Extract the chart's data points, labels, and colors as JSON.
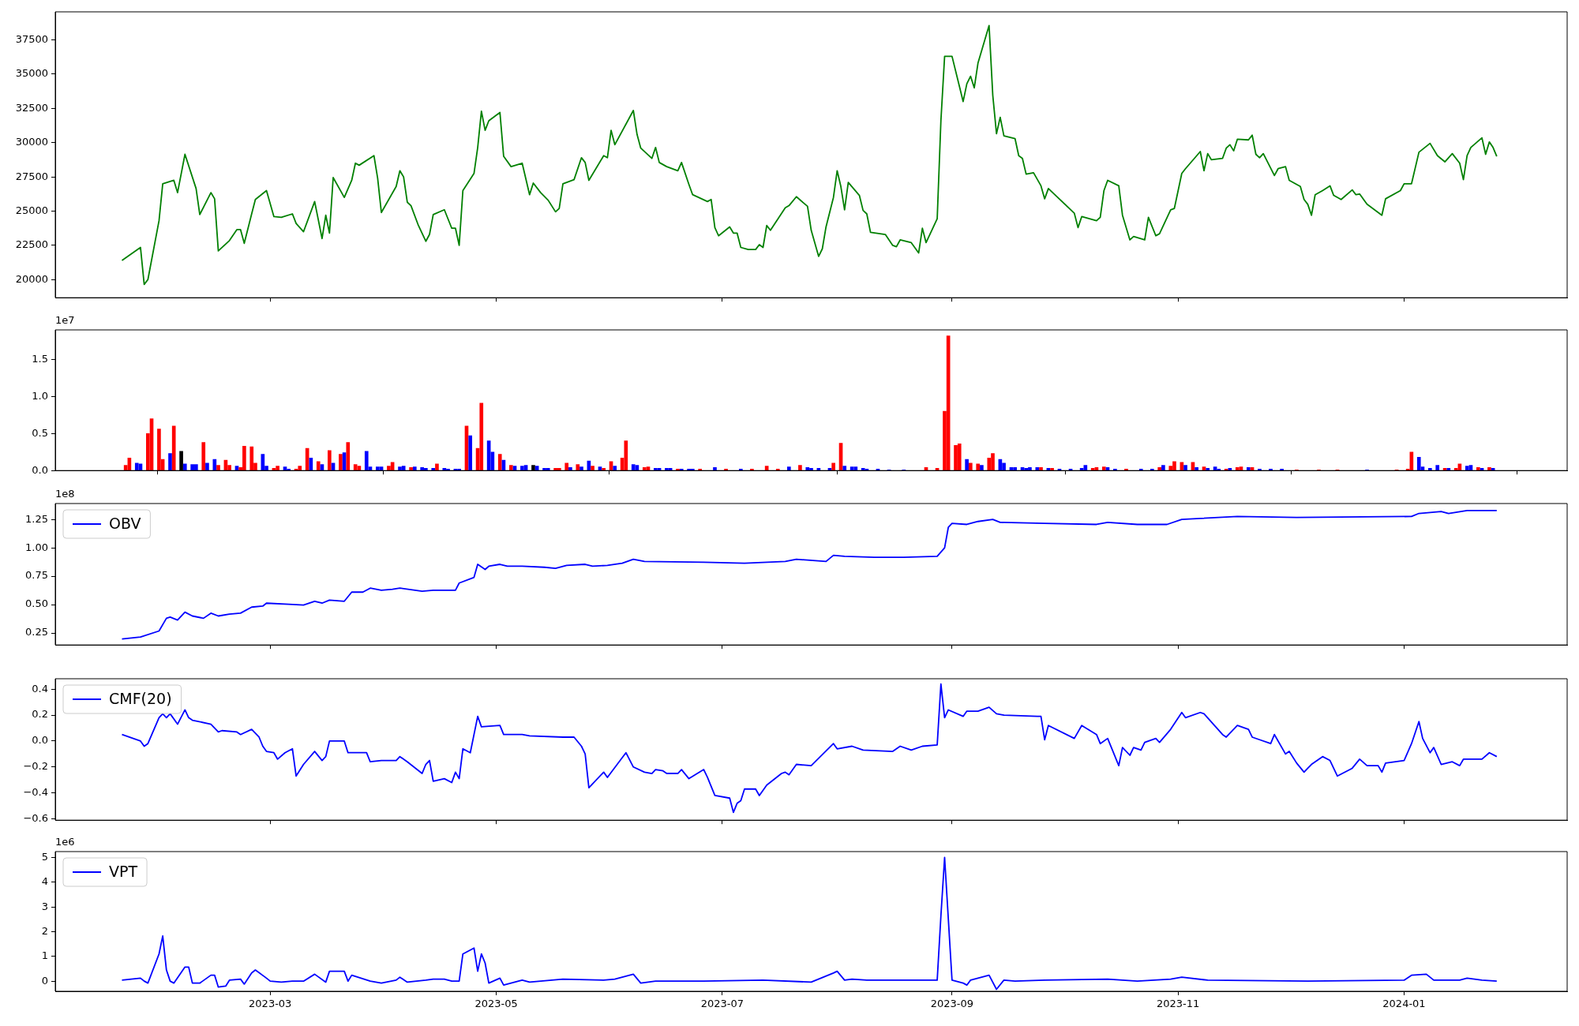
{
  "chart_data": [
    {
      "type": "line",
      "xlim": [
        "2023-01-02",
        "2024-02-14"
      ],
      "xticks": [
        "2023-03",
        "2023-05",
        "2023-07",
        "2023-09",
        "2023-11",
        "2024-01"
      ],
      "tick_labels": "y",
      "ylim": [
        18680,
        39550
      ],
      "yticks": [
        20000,
        22500,
        25000,
        27500,
        30000,
        32500,
        35000,
        37500
      ],
      "x": [
        "2023-01-20",
        "2023-01-25",
        "2023-01-26",
        "2023-01-27",
        "2023-01-30",
        "2023-01-31",
        "2023-02-03",
        "2023-02-04",
        "2023-02-06",
        "2023-02-09",
        "2023-02-10",
        "2023-02-13",
        "2023-02-14",
        "2023-02-15",
        "2023-02-18",
        "2023-02-20",
        "2023-02-21",
        "2023-02-22",
        "2023-02-24",
        "2023-02-25",
        "2023-02-28",
        "2023-03-02",
        "2023-03-04",
        "2023-03-07",
        "2023-03-08",
        "2023-03-10",
        "2023-03-13",
        "2023-03-15",
        "2023-03-16",
        "2023-03-17",
        "2023-03-18",
        "2023-03-21",
        "2023-03-23",
        "2023-03-24",
        "2023-03-25",
        "2023-03-29",
        "2023-03-30",
        "2023-03-31",
        "2023-04-04",
        "2023-04-05",
        "2023-04-06",
        "2023-04-07",
        "2023-04-08",
        "2023-04-10",
        "2023-04-12",
        "2023-04-13",
        "2023-04-14",
        "2023-04-17",
        "2023-04-19",
        "2023-04-20",
        "2023-04-21",
        "2023-04-22",
        "2023-04-25",
        "2023-04-26",
        "2023-04-27",
        "2023-04-28",
        "2023-04-29",
        "2023-05-02",
        "2023-05-03",
        "2023-05-05",
        "2023-05-08",
        "2023-05-10",
        "2023-05-11",
        "2023-05-13",
        "2023-05-15",
        "2023-05-17",
        "2023-05-18",
        "2023-05-19",
        "2023-05-22",
        "2023-05-24",
        "2023-05-25",
        "2023-05-26",
        "2023-05-30",
        "2023-05-31",
        "2023-06-01",
        "2023-06-02",
        "2023-06-07",
        "2023-06-08",
        "2023-06-09",
        "2023-06-12",
        "2023-06-13",
        "2023-06-14",
        "2023-06-16",
        "2023-06-19",
        "2023-06-20",
        "2023-06-22",
        "2023-06-23",
        "2023-06-27",
        "2023-06-28",
        "2023-06-29",
        "2023-06-30",
        "2023-07-03",
        "2023-07-04",
        "2023-07-05",
        "2023-07-06",
        "2023-07-08",
        "2023-07-10",
        "2023-07-11",
        "2023-07-12",
        "2023-07-13",
        "2023-07-14",
        "2023-07-18",
        "2023-07-19",
        "2023-07-21",
        "2023-07-24",
        "2023-07-25",
        "2023-07-27",
        "2023-07-28",
        "2023-07-29",
        "2023-07-31",
        "2023-08-01",
        "2023-08-02",
        "2023-08-03",
        "2023-08-04",
        "2023-08-07",
        "2023-08-08",
        "2023-08-09",
        "2023-08-10",
        "2023-08-14",
        "2023-08-16",
        "2023-08-17",
        "2023-08-18",
        "2023-08-21",
        "2023-08-23",
        "2023-08-24",
        "2023-08-25",
        "2023-08-28",
        "2023-08-29",
        "2023-08-30",
        "2023-09-01",
        "2023-09-03",
        "2023-09-04",
        "2023-09-05",
        "2023-09-06",
        "2023-09-07",
        "2023-09-08",
        "2023-09-11",
        "2023-09-12",
        "2023-09-13",
        "2023-09-14",
        "2023-09-15",
        "2023-09-18",
        "2023-09-19",
        "2023-09-20",
        "2023-09-21",
        "2023-09-23",
        "2023-09-25",
        "2023-09-26",
        "2023-09-27",
        "2023-10-04",
        "2023-10-05",
        "2023-10-06",
        "2023-10-10",
        "2023-10-11",
        "2023-10-12",
        "2023-10-13",
        "2023-10-16",
        "2023-10-17",
        "2023-10-19",
        "2023-10-20",
        "2023-10-23",
        "2023-10-24",
        "2023-10-26",
        "2023-10-27",
        "2023-10-30",
        "2023-10-31",
        "2023-11-02",
        "2023-11-03",
        "2023-11-07",
        "2023-11-08",
        "2023-11-09",
        "2023-11-10",
        "2023-11-13",
        "2023-11-14",
        "2023-11-15",
        "2023-11-16",
        "2023-11-17",
        "2023-11-20",
        "2023-11-21",
        "2023-11-22",
        "2023-11-23",
        "2023-11-24",
        "2023-11-27",
        "2023-11-28",
        "2023-11-30",
        "2023-12-01",
        "2023-12-04",
        "2023-12-05",
        "2023-12-06",
        "2023-12-07",
        "2023-12-08",
        "2023-12-10",
        "2023-12-12",
        "2023-12-13",
        "2023-12-15",
        "2023-12-18",
        "2023-12-19",
        "2023-12-20",
        "2023-12-22",
        "2023-12-25",
        "2023-12-26",
        "2023-12-27",
        "2023-12-31",
        "2024-01-01",
        "2024-01-03",
        "2024-01-05",
        "2024-01-08",
        "2024-01-10",
        "2024-01-12",
        "2024-01-14",
        "2024-01-16",
        "2024-01-17",
        "2024-01-18",
        "2024-01-19",
        "2024-01-22",
        "2024-01-23",
        "2024-01-24",
        "2024-01-25",
        "2024-01-26"
      ],
      "series": [
        {
          "color": "#008000",
          "values": [
            21400,
            22350,
            19650,
            20000,
            24300,
            27000,
            27250,
            26350,
            29150,
            26650,
            24750,
            26350,
            25900,
            22100,
            22850,
            23650,
            23650,
            22650,
            24800,
            25850,
            26500,
            24600,
            24550,
            24800,
            24100,
            23500,
            25700,
            23000,
            24700,
            23400,
            27450,
            26000,
            27250,
            28500,
            28350,
            29050,
            27400,
            24900,
            26800,
            27950,
            27500,
            25650,
            25400,
            23950,
            22800,
            23300,
            24750,
            25100,
            23750,
            23750,
            22500,
            26500,
            27750,
            29650,
            32300,
            30900,
            31600,
            32200,
            29000,
            28250,
            28500,
            26200,
            27050,
            26350,
            25800,
            24950,
            25200,
            27000,
            27300,
            28900,
            28550,
            27250,
            29050,
            28900,
            30900,
            29850,
            32350,
            30600,
            29600,
            28850,
            29650,
            28550,
            28250,
            27950,
            28550,
            26950,
            26200,
            25700,
            25850,
            23800,
            23200,
            23850,
            23400,
            23400,
            22350,
            22200,
            22200,
            22550,
            22350,
            23950,
            23600,
            25250,
            25400,
            26050,
            25350,
            23600,
            21700,
            22250,
            23850,
            26000,
            27950,
            26800,
            25100,
            27100,
            26150,
            25050,
            24800,
            23450,
            23300,
            22500,
            22400,
            22900,
            22700,
            21950,
            23750,
            22700,
            24450,
            31600,
            36300,
            36300,
            34100,
            33000,
            34300,
            34850,
            34000,
            35800,
            38550,
            33450,
            30650,
            31850,
            30500,
            30300,
            29050,
            28850,
            27700,
            27800,
            26850,
            25900,
            26650,
            24850,
            23800,
            24600,
            24300,
            24550,
            26500,
            27250,
            26850,
            24700,
            22900,
            23150,
            22900,
            24550,
            23200,
            23350,
            25100,
            25200,
            27750,
            28100,
            29350,
            27950,
            29200,
            28750,
            28850,
            29600,
            29850,
            29400,
            30250,
            30200,
            30550,
            29150,
            28900,
            29200,
            27600,
            28100,
            28250,
            27250,
            26800,
            25850,
            25500,
            24700,
            26200,
            26500,
            26850,
            26150,
            25850,
            26550,
            26200,
            26250,
            25500,
            24900,
            24700,
            25900,
            26500,
            27000,
            27000,
            29300,
            29950,
            29050,
            28600,
            29200,
            28500,
            27300,
            29050,
            29650,
            30350,
            29150,
            30050,
            29650,
            29000
          ]
        }
      ]
    },
    {
      "type": "bar",
      "xlim": [
        "2023-01-02",
        "2024-02-14"
      ],
      "xticks": [
        "2023-03",
        "2023-05",
        "2023-07",
        "2023-09",
        "2023-11",
        "2024-01"
      ],
      "tick_labels": "y",
      "ylim": [
        0,
        1.9
      ],
      "yticks": [
        {
          "value": 0,
          "label": "0.0"
        },
        0.5,
        {
          "value": 1,
          "label": "1.0"
        },
        1.5
      ],
      "annotations": [
        "1e7"
      ],
      "x": [
        "2023-01-21",
        "2023-01-22",
        "2023-01-24",
        "2023-01-25",
        "2023-01-27",
        "2023-01-28",
        "2023-01-30",
        "2023-01-31",
        "2023-02-02",
        "2023-02-03",
        "2023-02-05",
        "2023-02-06",
        "2023-02-08",
        "2023-02-09",
        "2023-02-11",
        "2023-02-12",
        "2023-02-14",
        "2023-02-15",
        "2023-02-17",
        "2023-02-18",
        "2023-02-20",
        "2023-02-21",
        "2023-02-22",
        "2023-02-24",
        "2023-02-25",
        "2023-02-27",
        "2023-02-28",
        "2023-03-02",
        "2023-03-03",
        "2023-03-05",
        "2023-03-06",
        "2023-03-08",
        "2023-03-09",
        "2023-03-11",
        "2023-03-12",
        "2023-03-14",
        "2023-03-15",
        "2023-03-17",
        "2023-03-18",
        "2023-03-20",
        "2023-03-21",
        "2023-03-22",
        "2023-03-24",
        "2023-03-25",
        "2023-03-27",
        "2023-03-28",
        "2023-03-30",
        "2023-03-31",
        "2023-04-02",
        "2023-04-03",
        "2023-04-05",
        "2023-04-06",
        "2023-04-08",
        "2023-04-09",
        "2023-04-11",
        "2023-04-12",
        "2023-04-14",
        "2023-04-15",
        "2023-04-17",
        "2023-04-18",
        "2023-04-20",
        "2023-04-21",
        "2023-04-23",
        "2023-04-24",
        "2023-04-26",
        "2023-04-27",
        "2023-04-29",
        "2023-04-30",
        "2023-05-02",
        "2023-05-03",
        "2023-05-05",
        "2023-05-06",
        "2023-05-08",
        "2023-05-09",
        "2023-05-11",
        "2023-05-12",
        "2023-05-14",
        "2023-05-15",
        "2023-05-17",
        "2023-05-18",
        "2023-05-20",
        "2023-05-21",
        "2023-05-23",
        "2023-05-24",
        "2023-05-26",
        "2023-05-27",
        "2023-05-29",
        "2023-05-30",
        "2023-06-01",
        "2023-06-02",
        "2023-06-04",
        "2023-06-05",
        "2023-06-07",
        "2023-06-08",
        "2023-06-10",
        "2023-06-11",
        "2023-06-13",
        "2023-06-14",
        "2023-06-16",
        "2023-06-17",
        "2023-06-19",
        "2023-06-20",
        "2023-06-22",
        "2023-06-23",
        "2023-06-25",
        "2023-06-29",
        "2023-07-02",
        "2023-07-06",
        "2023-07-09",
        "2023-07-13",
        "2023-07-16",
        "2023-07-19",
        "2023-07-22",
        "2023-07-24",
        "2023-07-25",
        "2023-07-27",
        "2023-07-30",
        "2023-07-31",
        "2023-08-02",
        "2023-08-03",
        "2023-08-05",
        "2023-08-06",
        "2023-08-08",
        "2023-08-09",
        "2023-08-12",
        "2023-08-15",
        "2023-08-19",
        "2023-08-25",
        "2023-08-28",
        "2023-08-30",
        "2023-08-31",
        "2023-09-02",
        "2023-09-03",
        "2023-09-05",
        "2023-09-06",
        "2023-09-08",
        "2023-09-09",
        "2023-09-11",
        "2023-09-12",
        "2023-09-14",
        "2023-09-15",
        "2023-09-17",
        "2023-09-18",
        "2023-09-20",
        "2023-09-21",
        "2023-09-22",
        "2023-09-24",
        "2023-09-25",
        "2023-09-27",
        "2023-09-28",
        "2023-09-30",
        "2023-10-03",
        "2023-10-06",
        "2023-10-07",
        "2023-10-09",
        "2023-10-10",
        "2023-10-12",
        "2023-10-13",
        "2023-10-15",
        "2023-10-18",
        "2023-10-22",
        "2023-10-25",
        "2023-10-27",
        "2023-10-28",
        "2023-10-30",
        "2023-10-31",
        "2023-11-02",
        "2023-11-03",
        "2023-11-05",
        "2023-11-06",
        "2023-11-08",
        "2023-11-09",
        "2023-11-11",
        "2023-11-12",
        "2023-11-14",
        "2023-11-15",
        "2023-11-17",
        "2023-11-18",
        "2023-11-20",
        "2023-11-21",
        "2023-11-23",
        "2023-11-26",
        "2023-11-29",
        "2023-12-03",
        "2023-12-09",
        "2023-12-14",
        "2023-12-22",
        "2023-12-30",
        "2024-01-02",
        "2024-01-03",
        "2024-01-05",
        "2024-01-06",
        "2024-01-08",
        "2024-01-10",
        "2024-01-12",
        "2024-01-13",
        "2024-01-15",
        "2024-01-16",
        "2024-01-18",
        "2024-01-19",
        "2024-01-21",
        "2024-01-22",
        "2024-01-24",
        "2024-01-25"
      ],
      "values": [
        0.07,
        0.17,
        0.1,
        0.09,
        0.5,
        0.7,
        0.56,
        0.15,
        0.23,
        0.6,
        0.26,
        0.09,
        0.08,
        0.08,
        0.38,
        0.1,
        0.15,
        0.07,
        0.14,
        0.07,
        0.06,
        0.04,
        0.33,
        0.32,
        0.1,
        0.22,
        0.06,
        0.03,
        0.06,
        0.05,
        0.02,
        0.02,
        0.06,
        0.3,
        0.17,
        0.12,
        0.08,
        0.27,
        0.1,
        0.22,
        0.24,
        0.38,
        0.08,
        0.06,
        0.26,
        0.05,
        0.05,
        0.05,
        0.06,
        0.11,
        0.05,
        0.06,
        0.04,
        0.05,
        0.04,
        0.03,
        0.03,
        0.09,
        0.03,
        0.02,
        0.02,
        0.02,
        0.6,
        0.47,
        0.3,
        0.91,
        0.4,
        0.25,
        0.22,
        0.14,
        0.07,
        0.06,
        0.06,
        0.07,
        0.07,
        0.06,
        0.03,
        0.03,
        0.03,
        0.03,
        0.1,
        0.04,
        0.08,
        0.05,
        0.13,
        0.06,
        0.05,
        0.03,
        0.12,
        0.06,
        0.17,
        0.4,
        0.08,
        0.07,
        0.04,
        0.05,
        0.03,
        0.03,
        0.03,
        0.03,
        0.02,
        0.02,
        0.02,
        0.02,
        0.02,
        0.04,
        0.02,
        0.02,
        0.02,
        0.06,
        0.02,
        0.05,
        0.07,
        0.04,
        0.03,
        0.03,
        0.03,
        0.1,
        0.37,
        0.06,
        0.05,
        0.05,
        0.03,
        0.02,
        0.02,
        0.01,
        0.01,
        0.04,
        0.03,
        0.8,
        1.82,
        0.34,
        0.36,
        0.15,
        0.1,
        0.09,
        0.07,
        0.17,
        0.23,
        0.15,
        0.1,
        0.04,
        0.04,
        0.04,
        0.03,
        0.04,
        0.04,
        0.04,
        0.03,
        0.03,
        0.02,
        0.02,
        0.03,
        0.07,
        0.03,
        0.04,
        0.05,
        0.04,
        0.02,
        0.02,
        0.02,
        0.02,
        0.04,
        0.07,
        0.06,
        0.12,
        0.11,
        0.07,
        0.11,
        0.04,
        0.05,
        0.03,
        0.05,
        0.02,
        0.02,
        0.03,
        0.04,
        0.05,
        0.04,
        0.04,
        0.02,
        0.02,
        0.02,
        0.01,
        0.01,
        0.01,
        0.01,
        0.01,
        0.02,
        0.25,
        0.18,
        0.05,
        0.03,
        0.07,
        0.03,
        0.03,
        0.03,
        0.09,
        0.06,
        0.07,
        0.04,
        0.03,
        0.04,
        0.03
      ],
      "colors": [
        "#ff0000",
        "#ff0000",
        "#0000ff",
        "#0000ff",
        "#ff0000",
        "#ff0000",
        "#ff0000",
        "#ff0000",
        "#0000ff",
        "#ff0000",
        "#000000",
        "#0000ff",
        "#0000ff",
        "#0000ff",
        "#ff0000",
        "#0000ff",
        "#0000ff",
        "#ff0000",
        "#ff0000",
        "#ff0000",
        "#0000ff",
        "#ff0000",
        "#ff0000",
        "#ff0000",
        "#ff0000",
        "#0000ff",
        "#0000ff",
        "#ff0000",
        "#ff0000",
        "#0000ff",
        "#0000ff",
        "#ff0000",
        "#ff0000",
        "#ff0000",
        "#0000ff",
        "#ff0000",
        "#0000ff",
        "#ff0000",
        "#0000ff",
        "#ff0000",
        "#0000ff",
        "#ff0000",
        "#ff0000",
        "#ff0000",
        "#0000ff",
        "#0000ff",
        "#0000ff",
        "#0000ff",
        "#ff0000",
        "#ff0000",
        "#0000ff",
        "#0000ff",
        "#ff0000",
        "#0000ff",
        "#0000ff",
        "#0000ff",
        "#0000ff",
        "#ff0000",
        "#0000ff",
        "#0000ff",
        "#0000ff",
        "#0000ff",
        "#ff0000",
        "#0000ff",
        "#ff0000",
        "#ff0000",
        "#0000ff",
        "#0000ff",
        "#ff0000",
        "#0000ff",
        "#ff0000",
        "#0000ff",
        "#0000ff",
        "#0000ff",
        "#000000",
        "#0000ff",
        "#0000ff",
        "#0000ff",
        "#ff0000",
        "#ff0000",
        "#ff0000",
        "#0000ff",
        "#ff0000",
        "#0000ff",
        "#0000ff",
        "#ff0000",
        "#0000ff",
        "#ff0000",
        "#ff0000",
        "#0000ff",
        "#ff0000",
        "#ff0000",
        "#0000ff",
        "#0000ff",
        "#ff0000",
        "#ff0000",
        "#0000ff",
        "#0000ff",
        "#0000ff",
        "#0000ff",
        "#ff0000",
        "#0000ff",
        "#0000ff",
        "#0000ff",
        "#ff0000",
        "#0000ff",
        "#ff0000",
        "#0000ff",
        "#ff0000",
        "#ff0000",
        "#ff0000",
        "#0000ff",
        "#ff0000",
        "#0000ff",
        "#0000ff",
        "#0000ff",
        "#0000ff",
        "#ff0000",
        "#ff0000",
        "#0000ff",
        "#0000ff",
        "#0000ff",
        "#0000ff",
        "#0000ff",
        "#0000ff",
        "#0000ff",
        "#0000ff",
        "#ff0000",
        "#ff0000",
        "#ff0000",
        "#ff0000",
        "#ff0000",
        "#ff0000",
        "#0000ff",
        "#ff0000",
        "#ff0000",
        "#0000ff",
        "#ff0000",
        "#ff0000",
        "#0000ff",
        "#0000ff",
        "#0000ff",
        "#0000ff",
        "#0000ff",
        "#0000ff",
        "#0000ff",
        "#0000ff",
        "#ff0000",
        "#0000ff",
        "#ff0000",
        "#0000ff",
        "#0000ff",
        "#0000ff",
        "#0000ff",
        "#ff0000",
        "#ff0000",
        "#ff0000",
        "#0000ff",
        "#0000ff",
        "#ff0000",
        "#0000ff",
        "#0000ff",
        "#ff0000",
        "#0000ff",
        "#ff0000",
        "#ff0000",
        "#ff0000",
        "#0000ff",
        "#ff0000",
        "#0000ff",
        "#ff0000",
        "#0000ff",
        "#0000ff",
        "#0000ff",
        "#ff0000",
        "#0000ff",
        "#ff0000",
        "#ff0000",
        "#0000ff",
        "#ff0000",
        "#0000ff",
        "#0000ff",
        "#0000ff",
        "#ff0000",
        "#ff0000",
        "#ff0000",
        "#0000ff",
        "#ff0000",
        "#ff0000",
        "#ff0000",
        "#0000ff",
        "#0000ff",
        "#0000ff",
        "#0000ff",
        "#ff0000",
        "#0000ff",
        "#ff0000",
        "#ff0000",
        "#0000ff",
        "#0000ff",
        "#ff0000",
        "#0000ff",
        "#ff0000",
        "#0000ff"
      ]
    },
    {
      "type": "line",
      "xlim": [
        "2023-01-02",
        "2024-02-14"
      ],
      "xticks": [
        "2023-03",
        "2023-05",
        "2023-07",
        "2023-09",
        "2023-11",
        "2024-01"
      ],
      "tick_labels": "y",
      "ylim": [
        0.145,
        1.39
      ],
      "yticks": [
        0.25,
        {
          "value": 0.5,
          "label": "0.50"
        },
        0.75,
        {
          "value": 1,
          "label": "1.00"
        },
        1.25
      ],
      "annotations": [
        "1e8"
      ],
      "legend": "top left",
      "x": [
        "2023-01-20",
        "2023-01-25",
        "2023-01-30",
        "2023-02-01",
        "2023-02-02",
        "2023-02-04",
        "2023-02-06",
        "2023-02-08",
        "2023-02-11",
        "2023-02-13",
        "2023-02-15",
        "2023-02-18",
        "2023-02-21",
        "2023-02-24",
        "2023-02-27",
        "2023-02-28",
        "2023-03-06",
        "2023-03-10",
        "2023-03-13",
        "2023-03-15",
        "2023-03-17",
        "2023-03-21",
        "2023-03-23",
        "2023-03-26",
        "2023-03-28",
        "2023-03-31",
        "2023-04-03",
        "2023-04-05",
        "2023-04-11",
        "2023-04-14",
        "2023-04-20",
        "2023-04-21",
        "2023-04-25",
        "2023-04-26",
        "2023-04-28",
        "2023-04-29",
        "2023-05-02",
        "2023-05-04",
        "2023-05-08",
        "2023-05-14",
        "2023-05-17",
        "2023-05-20",
        "2023-05-25",
        "2023-05-27",
        "2023-05-31",
        "2023-06-04",
        "2023-06-07",
        "2023-06-10",
        "2023-06-26",
        "2023-07-07",
        "2023-07-18",
        "2023-07-21",
        "2023-07-29",
        "2023-07-31",
        "2023-08-03",
        "2023-08-11",
        "2023-08-19",
        "2023-08-28",
        "2023-08-30",
        "2023-08-31",
        "2023-09-01",
        "2023-09-05",
        "2023-09-08",
        "2023-09-12",
        "2023-09-14",
        "2023-09-26",
        "2023-10-10",
        "2023-10-13",
        "2023-10-21",
        "2023-10-29",
        "2023-11-02",
        "2023-11-07",
        "2023-11-17",
        "2023-12-03",
        "2024-01-03",
        "2024-01-05",
        "2024-01-11",
        "2024-01-13",
        "2024-01-18",
        "2024-01-26"
      ],
      "series": [
        {
          "name": "OBV",
          "color": "#0000ff",
          "values": [
            0.197,
            0.215,
            0.268,
            0.38,
            0.39,
            0.364,
            0.434,
            0.4,
            0.38,
            0.425,
            0.4,
            0.417,
            0.425,
            0.478,
            0.487,
            0.513,
            0.504,
            0.496,
            0.53,
            0.513,
            0.54,
            0.53,
            0.61,
            0.61,
            0.645,
            0.627,
            0.636,
            0.645,
            0.618,
            0.627,
            0.627,
            0.69,
            0.74,
            0.855,
            0.81,
            0.838,
            0.855,
            0.838,
            0.838,
            0.829,
            0.82,
            0.846,
            0.855,
            0.838,
            0.846,
            0.864,
            0.899,
            0.88,
            0.873,
            0.864,
            0.88,
            0.899,
            0.88,
            0.934,
            0.925,
            0.917,
            0.917,
            0.925,
            1.0,
            1.18,
            1.215,
            1.206,
            1.232,
            1.25,
            1.224,
            1.215,
            1.206,
            1.224,
            1.206,
            1.206,
            1.25,
            1.259,
            1.276,
            1.268,
            1.276,
            1.303,
            1.32,
            1.303,
            1.329,
            1.329
          ]
        }
      ]
    },
    {
      "type": "line",
      "xlim": [
        "2023-01-02",
        "2024-02-14"
      ],
      "xticks": [
        "2023-03",
        "2023-05",
        "2023-07",
        "2023-09",
        "2023-11",
        "2024-01"
      ],
      "tick_labels": "y",
      "ylim": [
        -0.61,
        0.48
      ],
      "yticks": [
        {
          "value": -0.6,
          "label": "−0.6"
        },
        {
          "value": -0.4,
          "label": "−0.4"
        },
        {
          "value": -0.2,
          "label": "−0.2"
        },
        {
          "value": 0,
          "label": "0.0"
        },
        0.2,
        0.4
      ],
      "legend": "top left",
      "x": [
        "2023-01-20",
        "2023-01-25",
        "2023-01-26",
        "2023-01-27",
        "2023-01-30",
        "2023-01-31",
        "2023-02-01",
        "2023-02-02",
        "2023-02-04",
        "2023-02-06",
        "2023-02-07",
        "2023-02-08",
        "2023-02-13",
        "2023-02-15",
        "2023-02-16",
        "2023-02-20",
        "2023-02-21",
        "2023-02-24",
        "2023-02-26",
        "2023-02-27",
        "2023-02-28",
        "2023-03-02",
        "2023-03-03",
        "2023-03-05",
        "2023-03-07",
        "2023-03-08",
        "2023-03-10",
        "2023-03-13",
        "2023-03-15",
        "2023-03-16",
        "2023-03-17",
        "2023-03-21",
        "2023-03-22",
        "2023-03-25",
        "2023-03-27",
        "2023-03-28",
        "2023-03-31",
        "2023-04-04",
        "2023-04-05",
        "2023-04-07",
        "2023-04-11",
        "2023-04-12",
        "2023-04-13",
        "2023-04-14",
        "2023-04-17",
        "2023-04-19",
        "2023-04-20",
        "2023-04-21",
        "2023-04-22",
        "2023-04-24",
        "2023-04-26",
        "2023-04-27",
        "2023-05-02",
        "2023-05-03",
        "2023-05-08",
        "2023-05-10",
        "2023-05-19",
        "2023-05-22",
        "2023-05-24",
        "2023-05-25",
        "2023-05-26",
        "2023-05-30",
        "2023-05-31",
        "2023-06-05",
        "2023-06-07",
        "2023-06-10",
        "2023-06-12",
        "2023-06-13",
        "2023-06-15",
        "2023-06-16",
        "2023-06-19",
        "2023-06-20",
        "2023-06-22",
        "2023-06-26",
        "2023-06-27",
        "2023-06-29",
        "2023-07-03",
        "2023-07-04",
        "2023-07-05",
        "2023-07-06",
        "2023-07-07",
        "2023-07-10",
        "2023-07-11",
        "2023-07-13",
        "2023-07-17",
        "2023-07-18",
        "2023-07-19",
        "2023-07-21",
        "2023-07-25",
        "2023-07-31",
        "2023-08-01",
        "2023-08-05",
        "2023-08-08",
        "2023-08-16",
        "2023-08-18",
        "2023-08-21",
        "2023-08-24",
        "2023-08-28",
        "2023-08-29",
        "2023-08-30",
        "2023-08-31",
        "2023-09-04",
        "2023-09-05",
        "2023-09-08",
        "2023-09-11",
        "2023-09-13",
        "2023-09-15",
        "2023-09-24",
        "2023-09-25",
        "2023-09-26",
        "2023-09-27",
        "2023-10-04",
        "2023-10-06",
        "2023-10-10",
        "2023-10-11",
        "2023-10-13",
        "2023-10-16",
        "2023-10-17",
        "2023-10-19",
        "2023-10-20",
        "2023-10-22",
        "2023-10-23",
        "2023-10-26",
        "2023-10-27",
        "2023-10-30",
        "2023-11-02",
        "2023-11-03",
        "2023-11-07",
        "2023-11-08",
        "2023-11-13",
        "2023-11-14",
        "2023-11-17",
        "2023-11-20",
        "2023-11-21",
        "2023-11-23",
        "2023-11-26",
        "2023-11-27",
        "2023-11-30",
        "2023-12-01",
        "2023-12-03",
        "2023-12-05",
        "2023-12-06",
        "2023-12-07",
        "2023-12-10",
        "2023-12-12",
        "2023-12-14",
        "2023-12-18",
        "2023-12-20",
        "2023-12-22",
        "2023-12-25",
        "2023-12-26",
        "2023-12-27",
        "2024-01-01",
        "2024-01-03",
        "2024-01-05",
        "2024-01-06",
        "2024-01-08",
        "2024-01-09",
        "2024-01-11",
        "2024-01-14",
        "2024-01-16",
        "2024-01-17",
        "2024-01-22",
        "2024-01-24",
        "2024-01-26"
      ],
      "series": [
        {
          "name": "CMF(20)",
          "color": "#0000ff",
          "values": [
            0.05,
            0,
            -0.04,
            -0.02,
            0.18,
            0.21,
            0.18,
            0.21,
            0.13,
            0.24,
            0.18,
            0.16,
            0.13,
            0.07,
            0.08,
            0.07,
            0.05,
            0.09,
            0.03,
            -0.04,
            -0.08,
            -0.09,
            -0.14,
            -0.09,
            -0.06,
            -0.27,
            -0.18,
            -0.08,
            -0.15,
            -0.12,
            0,
            0,
            -0.09,
            -0.09,
            -0.09,
            -0.16,
            -0.15,
            -0.15,
            -0.12,
            -0.16,
            -0.25,
            -0.18,
            -0.15,
            -0.31,
            -0.29,
            -0.32,
            -0.24,
            -0.29,
            -0.06,
            -0.09,
            0.19,
            0.11,
            0.12,
            0.05,
            0.05,
            0.04,
            0.03,
            0.03,
            -0.04,
            -0.1,
            -0.36,
            -0.24,
            -0.28,
            -0.09,
            -0.2,
            -0.24,
            -0.25,
            -0.22,
            -0.23,
            -0.25,
            -0.25,
            -0.22,
            -0.29,
            -0.22,
            -0.28,
            -0.42,
            -0.44,
            -0.55,
            -0.48,
            -0.46,
            -0.37,
            -0.37,
            -0.42,
            -0.34,
            -0.25,
            -0.24,
            -0.26,
            -0.18,
            -0.19,
            -0.02,
            -0.06,
            -0.04,
            -0.07,
            -0.08,
            -0.04,
            -0.07,
            -0.04,
            -0.03,
            0.44,
            0.18,
            0.24,
            0.19,
            0.23,
            0.23,
            0.26,
            0.21,
            0.2,
            0.19,
            0.19,
            0.01,
            0.12,
            0.02,
            0.12,
            0.05,
            -0.02,
            0.02,
            -0.19,
            -0.05,
            -0.11,
            -0.05,
            -0.07,
            -0.01,
            0.02,
            -0.01,
            0.09,
            0.22,
            0.18,
            0.22,
            0.21,
            0.05,
            0.03,
            0.12,
            0.09,
            0.03,
            0.01,
            -0.02,
            0.05,
            -0.1,
            -0.08,
            -0.17,
            -0.24,
            -0.21,
            -0.18,
            -0.12,
            -0.15,
            -0.27,
            -0.21,
            -0.14,
            -0.19,
            -0.19,
            -0.24,
            -0.17,
            -0.15,
            -0.02,
            0.15,
            0.02,
            -0.09,
            -0.05,
            -0.18,
            -0.16,
            -0.19,
            -0.14,
            -0.14,
            -0.09,
            -0.12
          ]
        }
      ]
    },
    {
      "type": "line",
      "xlim": [
        "2023-01-02",
        "2024-02-14"
      ],
      "xticks": [
        "2023-03",
        "2023-05",
        "2023-07",
        "2023-09",
        "2023-11",
        "2024-01"
      ],
      "ylim": [
        -0.41,
        5.24
      ],
      "yticks": [
        0,
        1,
        2,
        3,
        4,
        5
      ],
      "annotations": [
        "1e6"
      ],
      "legend": "top left",
      "x": [
        "2023-01-20",
        "2023-01-25",
        "2023-01-26",
        "2023-01-27",
        "2023-01-30",
        "2023-01-31",
        "2023-02-01",
        "2023-02-02",
        "2023-02-03",
        "2023-02-06",
        "2023-02-07",
        "2023-02-08",
        "2023-02-10",
        "2023-02-13",
        "2023-02-14",
        "2023-02-15",
        "2023-02-17",
        "2023-02-18",
        "2023-02-21",
        "2023-02-22",
        "2023-02-24",
        "2023-02-25",
        "2023-02-28",
        "2023-03-01",
        "2023-03-04",
        "2023-03-07",
        "2023-03-10",
        "2023-03-13",
        "2023-03-16",
        "2023-03-17",
        "2023-03-21",
        "2023-03-22",
        "2023-03-23",
        "2023-03-28",
        "2023-03-31",
        "2023-04-04",
        "2023-04-05",
        "2023-04-07",
        "2023-04-12",
        "2023-04-14",
        "2023-04-17",
        "2023-04-19",
        "2023-04-21",
        "2023-04-22",
        "2023-04-25",
        "2023-04-26",
        "2023-04-27",
        "2023-04-28",
        "2023-04-29",
        "2023-05-02",
        "2023-05-03",
        "2023-05-08",
        "2023-05-10",
        "2023-05-19",
        "2023-05-30",
        "2023-06-02",
        "2023-06-07",
        "2023-06-09",
        "2023-06-13",
        "2023-06-26",
        "2023-07-12",
        "2023-07-25",
        "2023-07-31",
        "2023-08-01",
        "2023-08-03",
        "2023-08-05",
        "2023-08-09",
        "2023-08-19",
        "2023-08-28",
        "2023-08-29",
        "2023-08-30",
        "2023-09-01",
        "2023-09-04",
        "2023-09-05",
        "2023-09-06",
        "2023-09-11",
        "2023-09-13",
        "2023-09-15",
        "2023-09-18",
        "2023-09-26",
        "2023-10-13",
        "2023-10-21",
        "2023-10-30",
        "2023-11-02",
        "2023-11-09",
        "2023-12-06",
        "2024-01-01",
        "2024-01-03",
        "2024-01-07",
        "2024-01-09",
        "2024-01-16",
        "2024-01-18",
        "2024-01-22",
        "2024-01-26"
      ],
      "series": [
        {
          "name": "VPT",
          "color": "#0000ff",
          "values": [
            0.04,
            0.12,
            0,
            -0.08,
            1.1,
            1.83,
            0.45,
            0,
            -0.08,
            0.57,
            0.57,
            -0.08,
            -0.08,
            0.24,
            0.24,
            -0.24,
            -0.2,
            0.04,
            0.08,
            -0.12,
            0.33,
            0.45,
            0.12,
            0,
            -0.04,
            0,
            0,
            0.28,
            -0.04,
            0.4,
            0.4,
            0,
            0.24,
            0,
            -0.08,
            0.04,
            0.16,
            -0.04,
            0.04,
            0.08,
            0.08,
            0,
            0,
            1.1,
            1.34,
            0.4,
            1.1,
            0.73,
            -0.08,
            0.12,
            -0.16,
            0.04,
            -0.04,
            0.08,
            0.04,
            0.08,
            0.28,
            -0.08,
            0,
            0,
            0.04,
            -0.04,
            0.33,
            0.4,
            0.04,
            0.08,
            0.04,
            0.04,
            0.04,
            2.64,
            5,
            0.04,
            -0.08,
            -0.16,
            0.04,
            0.24,
            -0.33,
            0.04,
            0,
            0.04,
            0.08,
            0,
            0.08,
            0.16,
            0.04,
            0,
            0.04,
            0.24,
            0.28,
            0.04,
            0.04,
            0.12,
            0.04,
            0
          ]
        }
      ]
    }
  ]
}
